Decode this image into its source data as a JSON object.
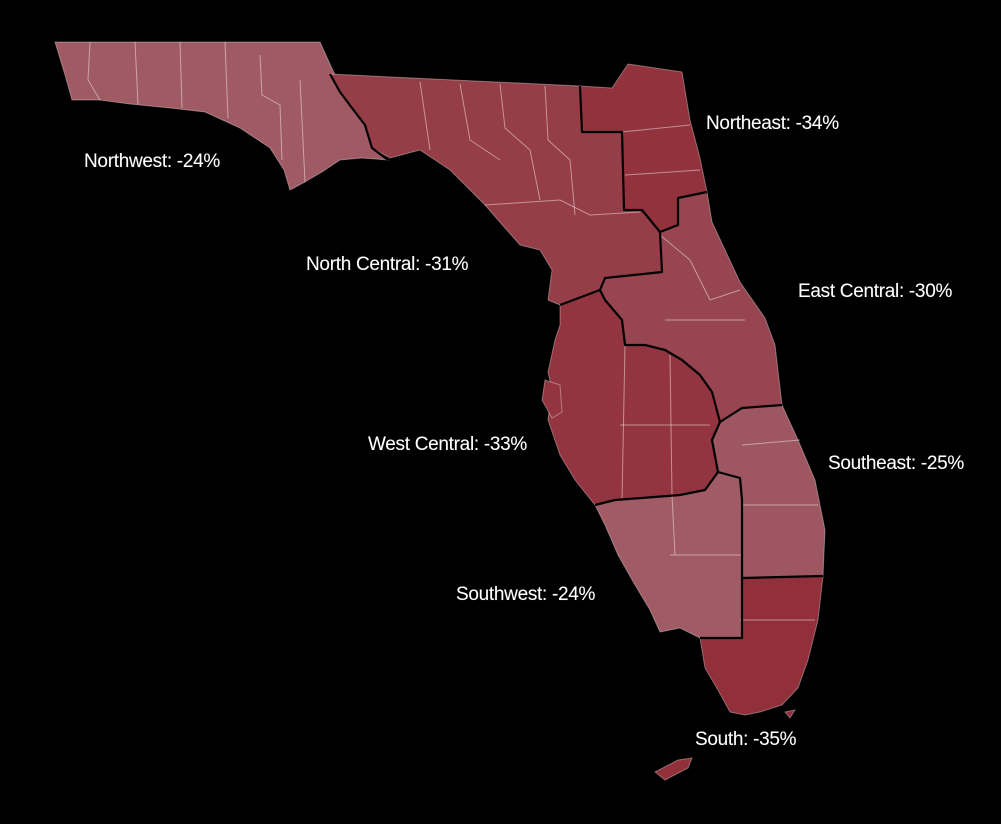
{
  "map": {
    "regions": [
      {
        "id": "northwest",
        "label": "Northwest: -24%",
        "value": -24,
        "color": "#a05a63"
      },
      {
        "id": "north-central",
        "label": "North Central: -31%",
        "value": -31,
        "color": "#963e48"
      },
      {
        "id": "northeast",
        "label": "Northeast: -34%",
        "value": -34,
        "color": "#92323d"
      },
      {
        "id": "east-central",
        "label": "East Central: -30%",
        "value": -30,
        "color": "#974550"
      },
      {
        "id": "west-central",
        "label": "West Central: -33%",
        "value": -33,
        "color": "#933540"
      },
      {
        "id": "southeast",
        "label": "Southeast: -25%",
        "value": -25,
        "color": "#9e5661"
      },
      {
        "id": "southwest",
        "label": "Southwest: -24%",
        "value": -24,
        "color": "#a05b64"
      },
      {
        "id": "south",
        "label": "South: -35%",
        "value": -35,
        "color": "#91303b"
      }
    ]
  }
}
